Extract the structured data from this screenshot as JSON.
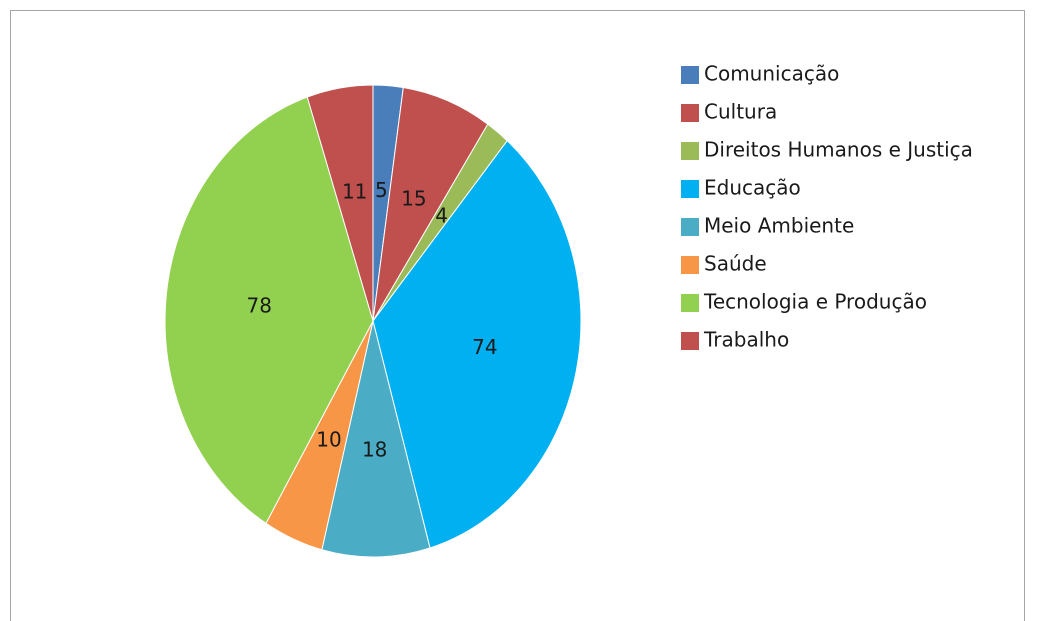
{
  "chart_data": {
    "type": "pie",
    "categories": [
      "Comunicação",
      "Cultura",
      "Direitos Humanos e Justiça",
      "Educação",
      "Meio Ambiente",
      "Saúde",
      "Tecnologia e Produção",
      "Trabalho"
    ],
    "values": [
      5,
      15,
      4,
      74,
      18,
      10,
      78,
      11
    ],
    "colors": [
      "#4a7ebb",
      "#c0504d",
      "#9bbb59",
      "#00b0f0",
      "#4bacc6",
      "#f79646",
      "#92d050",
      "#c0504d"
    ],
    "legend": "right"
  }
}
